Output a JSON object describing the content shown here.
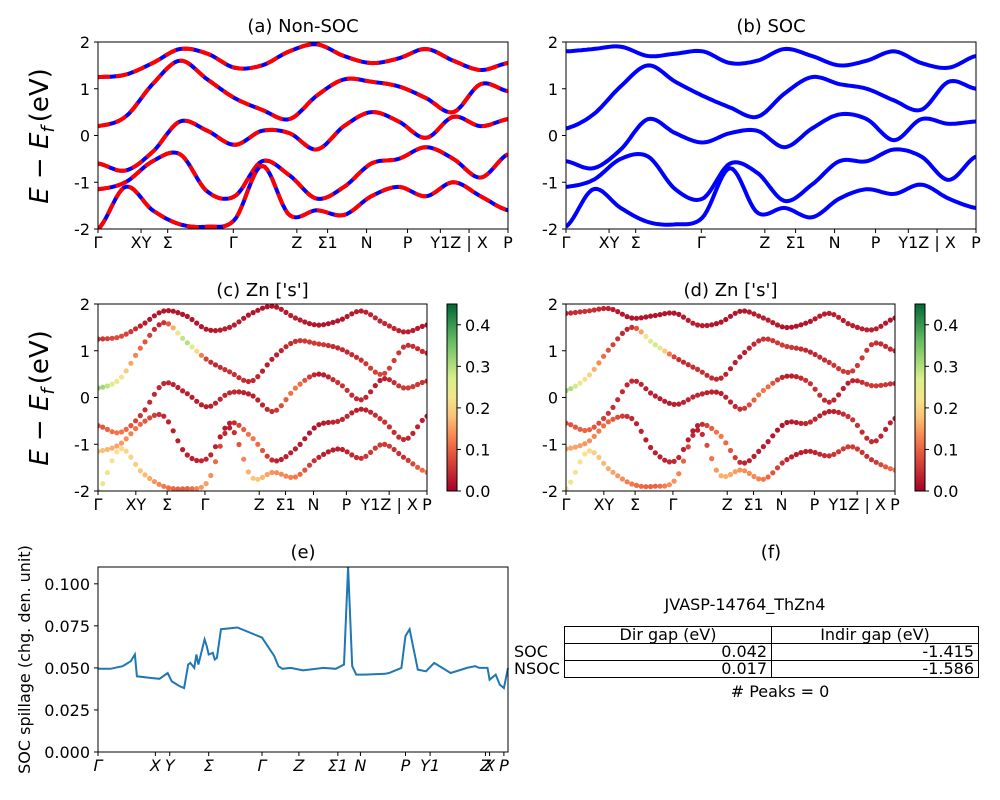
{
  "figure": {
    "panel_titles": [
      "(a) Non-SOC",
      "(b) SOC",
      "(c)  Zn ['s']",
      "(d) Zn ['s']",
      "(e)",
      "(f)"
    ],
    "band_ylabel": "E − E",
    "band_ylabel_sub": "f",
    "band_ylabel_unit": "(eV)",
    "spill_ylabel": "SOC spillage (chg. den. unit)"
  },
  "chart_data": [
    {
      "panel": "a",
      "type": "line",
      "title": "(a) Non-SOC",
      "ylim": [
        -2,
        2
      ],
      "yticks": [
        2,
        1,
        0,
        -1,
        -2
      ],
      "kpath_labels": [
        "Γ",
        "XY",
        "Σ",
        "Γ",
        "Z",
        "Σ1",
        "N",
        "P",
        "Y1",
        "Z | X",
        "P"
      ],
      "kpath_positions": [
        0,
        0.105,
        0.17,
        0.33,
        0.485,
        0.56,
        0.655,
        0.755,
        0.835,
        0.905,
        1.0
      ],
      "series": [
        {
          "values": [
            1.25,
            1.3,
            1.55,
            1.85,
            1.75,
            1.45,
            1.5,
            1.8,
            1.95,
            1.7,
            1.55,
            1.65,
            1.85,
            1.6,
            1.4,
            1.55
          ]
        },
        {
          "values": [
            0.2,
            0.4,
            1.1,
            1.6,
            1.2,
            0.8,
            0.55,
            0.35,
            0.85,
            1.2,
            1.15,
            1.05,
            0.8,
            0.5,
            1.1,
            0.95
          ]
        },
        {
          "values": [
            -0.6,
            -0.75,
            -0.35,
            0.3,
            0.1,
            -0.2,
            0.1,
            0.05,
            -0.3,
            0.2,
            0.5,
            0.3,
            -0.05,
            0.4,
            0.2,
            0.35
          ]
        },
        {
          "values": [
            -1.15,
            -1.0,
            -0.55,
            -0.4,
            -1.2,
            -1.3,
            -0.55,
            -0.85,
            -1.35,
            -1.1,
            -0.6,
            -0.5,
            -0.25,
            -0.5,
            -0.9,
            -0.4
          ]
        },
        {
          "values": [
            -2.0,
            -1.1,
            -1.6,
            -1.9,
            -1.95,
            -1.8,
            -0.65,
            -1.7,
            -1.6,
            -1.7,
            -1.3,
            -1.1,
            -1.3,
            -1.0,
            -1.3,
            -1.6
          ]
        }
      ]
    },
    {
      "panel": "b",
      "type": "line",
      "title": "(b) SOC",
      "ylim": [
        -2,
        2
      ],
      "yticks": [
        2,
        1,
        0,
        -1,
        -2
      ],
      "kpath_labels": [
        "Γ",
        "XY",
        "Σ",
        "Γ",
        "Z",
        "Σ1",
        "N",
        "P",
        "Y1",
        "Z | X",
        "P"
      ],
      "kpath_positions": [
        0,
        0.105,
        0.17,
        0.33,
        0.485,
        0.56,
        0.655,
        0.755,
        0.835,
        0.905,
        1.0
      ],
      "series": [
        {
          "values": [
            1.8,
            1.85,
            1.9,
            1.7,
            1.75,
            1.8,
            1.55,
            1.6,
            1.85,
            1.7,
            1.5,
            1.6,
            1.8,
            1.55,
            1.45,
            1.7
          ]
        },
        {
          "values": [
            0.15,
            0.45,
            1.05,
            1.5,
            1.15,
            0.85,
            0.6,
            0.4,
            0.9,
            1.25,
            1.1,
            1.0,
            0.75,
            0.55,
            1.15,
            1.0
          ]
        },
        {
          "values": [
            -0.55,
            -0.7,
            -0.3,
            0.35,
            0.05,
            -0.15,
            0.05,
            0.1,
            -0.25,
            0.15,
            0.45,
            0.35,
            -0.1,
            0.35,
            0.25,
            0.3
          ]
        },
        {
          "values": [
            -1.1,
            -0.95,
            -0.5,
            -0.45,
            -1.15,
            -1.35,
            -0.6,
            -0.8,
            -1.4,
            -1.05,
            -0.55,
            -0.55,
            -0.3,
            -0.45,
            -0.95,
            -0.45
          ]
        },
        {
          "values": [
            -1.95,
            -1.15,
            -1.55,
            -1.85,
            -1.9,
            -1.75,
            -0.7,
            -1.65,
            -1.55,
            -1.75,
            -1.35,
            -1.15,
            -1.25,
            -1.05,
            -1.35,
            -1.55
          ]
        }
      ]
    },
    {
      "panel": "c",
      "type": "scatter",
      "title": "(c)  Zn ['s']",
      "ylim": [
        -2,
        2
      ],
      "colorbar": {
        "min": 0.0,
        "max": 0.45,
        "ticks": [
          "0.0",
          "0.1",
          "0.2",
          "0.3",
          "0.4"
        ],
        "colormap": "RdYlGn"
      },
      "kpath_labels": [
        "Γ",
        "XY",
        "Σ",
        "Γ",
        "Z",
        "Σ1",
        "N",
        "P",
        "Y1Z | X",
        "P"
      ],
      "kpath_positions": [
        0,
        0.115,
        0.21,
        0.325,
        0.49,
        0.57,
        0.655,
        0.755,
        0.885,
        1.0
      ],
      "bands": [
        {
          "values": [
            1.25,
            1.3,
            1.55,
            1.85,
            1.75,
            1.45,
            1.5,
            1.8,
            1.95,
            1.7,
            1.55,
            1.65,
            1.85,
            1.6,
            1.4,
            1.55
          ],
          "weight": [
            0.05,
            0.08,
            0.03,
            0.02,
            0.02,
            0.02,
            0.03,
            0.02,
            0.02,
            0.03,
            0.02,
            0.02,
            0.03,
            0.04,
            0.03,
            0.02
          ]
        },
        {
          "values": [
            0.2,
            0.4,
            1.1,
            1.6,
            1.2,
            0.8,
            0.55,
            0.35,
            0.85,
            1.2,
            1.15,
            1.05,
            0.8,
            0.5,
            1.1,
            0.95
          ],
          "weight": [
            0.33,
            0.22,
            0.1,
            0.05,
            0.3,
            0.06,
            0.05,
            0.04,
            0.03,
            0.05,
            0.06,
            0.04,
            0.05,
            0.07,
            0.05,
            0.04
          ]
        },
        {
          "values": [
            -0.6,
            -0.75,
            -0.35,
            0.3,
            0.1,
            -0.2,
            0.1,
            0.05,
            -0.3,
            0.2,
            0.5,
            0.3,
            -0.05,
            0.4,
            0.2,
            0.35
          ],
          "weight": [
            0.08,
            0.12,
            0.05,
            0.04,
            0.03,
            0.03,
            0.04,
            0.03,
            0.05,
            0.12,
            0.03,
            0.05,
            0.04,
            0.03,
            0.06,
            0.05
          ]
        },
        {
          "values": [
            -1.15,
            -1.0,
            -0.55,
            -0.4,
            -1.2,
            -1.3,
            -0.55,
            -0.85,
            -1.35,
            -1.1,
            -0.6,
            -0.5,
            -0.25,
            -0.5,
            -0.9,
            -0.4
          ],
          "weight": [
            0.18,
            0.15,
            0.1,
            0.04,
            0.03,
            0.04,
            0.03,
            0.12,
            0.04,
            0.03,
            0.02,
            0.04,
            0.03,
            0.05,
            0.04,
            0.03
          ]
        },
        {
          "values": [
            -2.0,
            -1.1,
            -1.6,
            -1.9,
            -1.95,
            -1.8,
            -0.65,
            -1.7,
            -1.6,
            -1.7,
            -1.3,
            -1.1,
            -1.3,
            -1.0,
            -1.3,
            -1.6
          ],
          "weight": [
            0.25,
            0.2,
            0.18,
            0.12,
            0.1,
            0.15,
            0.03,
            0.18,
            0.14,
            0.12,
            0.04,
            0.03,
            0.05,
            0.06,
            0.05,
            0.12
          ]
        }
      ]
    },
    {
      "panel": "d",
      "type": "scatter",
      "title": "(d) Zn ['s']",
      "ylim": [
        -2,
        2
      ],
      "colorbar": {
        "min": 0.0,
        "max": 0.45,
        "ticks": [
          "0.0",
          "0.1",
          "0.2",
          "0.3",
          "0.4"
        ],
        "colormap": "RdYlGn"
      },
      "kpath_labels": [
        "Γ",
        "XY",
        "Σ",
        "Γ",
        "Z",
        "Σ1",
        "N",
        "P",
        "Y1Z | X",
        "P"
      ],
      "kpath_positions": [
        0,
        0.115,
        0.21,
        0.325,
        0.49,
        0.57,
        0.655,
        0.755,
        0.885,
        1.0
      ],
      "bands": [
        {
          "values": [
            1.8,
            1.85,
            1.9,
            1.7,
            1.75,
            1.8,
            1.55,
            1.6,
            1.85,
            1.7,
            1.5,
            1.6,
            1.8,
            1.55,
            1.45,
            1.7
          ],
          "weight": [
            0.04,
            0.05,
            0.03,
            0.02,
            0.02,
            0.02,
            0.03,
            0.02,
            0.02,
            0.03,
            0.02,
            0.02,
            0.03,
            0.03,
            0.03,
            0.02
          ]
        },
        {
          "values": [
            0.15,
            0.45,
            1.05,
            1.5,
            1.15,
            0.85,
            0.6,
            0.4,
            0.9,
            1.25,
            1.1,
            1.0,
            0.75,
            0.55,
            1.15,
            1.0
          ],
          "weight": [
            0.32,
            0.2,
            0.08,
            0.05,
            0.28,
            0.06,
            0.05,
            0.04,
            0.03,
            0.05,
            0.06,
            0.04,
            0.05,
            0.06,
            0.05,
            0.04
          ]
        },
        {
          "values": [
            -0.55,
            -0.7,
            -0.3,
            0.35,
            0.05,
            -0.15,
            0.05,
            0.1,
            -0.25,
            0.15,
            0.45,
            0.35,
            -0.1,
            0.35,
            0.25,
            0.3
          ],
          "weight": [
            0.08,
            0.1,
            0.05,
            0.04,
            0.03,
            0.03,
            0.04,
            0.03,
            0.05,
            0.12,
            0.03,
            0.05,
            0.04,
            0.03,
            0.06,
            0.05
          ]
        },
        {
          "values": [
            -1.1,
            -0.95,
            -0.5,
            -0.45,
            -1.15,
            -1.35,
            -0.6,
            -0.8,
            -1.4,
            -1.05,
            -0.55,
            -0.55,
            -0.3,
            -0.45,
            -0.95,
            -0.45
          ],
          "weight": [
            0.16,
            0.14,
            0.1,
            0.04,
            0.03,
            0.04,
            0.03,
            0.12,
            0.04,
            0.03,
            0.02,
            0.04,
            0.03,
            0.05,
            0.04,
            0.03
          ]
        },
        {
          "values": [
            -1.95,
            -1.15,
            -1.55,
            -1.85,
            -1.9,
            -1.75,
            -0.7,
            -1.65,
            -1.55,
            -1.75,
            -1.35,
            -1.15,
            -1.25,
            -1.05,
            -1.35,
            -1.55
          ],
          "weight": [
            0.24,
            0.2,
            0.16,
            0.12,
            0.1,
            0.14,
            0.03,
            0.16,
            0.14,
            0.12,
            0.04,
            0.03,
            0.05,
            0.06,
            0.05,
            0.12
          ]
        }
      ]
    },
    {
      "panel": "e",
      "type": "line",
      "title": "(e)",
      "ylabel": "SOC spillage (chg. den. unit)",
      "ylim": [
        0.0,
        0.11
      ],
      "yticks": [
        "0.000",
        "0.025",
        "0.050",
        "0.075",
        "0.100"
      ],
      "kpath_labels": [
        "Γ",
        "X",
        "Y",
        "Σ",
        "Γ",
        "Z",
        "Σ1",
        "N",
        "P",
        "Y1",
        "Z",
        "X",
        "P"
      ],
      "kpath_positions": [
        0,
        0.14,
        0.175,
        0.27,
        0.4,
        0.49,
        0.585,
        0.64,
        0.75,
        0.81,
        0.945,
        0.955,
        0.99
      ],
      "x": [
        0,
        0.03,
        0.06,
        0.08,
        0.09,
        0.095,
        0.13,
        0.15,
        0.17,
        0.18,
        0.2,
        0.21,
        0.22,
        0.225,
        0.235,
        0.24,
        0.245,
        0.26,
        0.265,
        0.27,
        0.28,
        0.285,
        0.29,
        0.3,
        0.34,
        0.4,
        0.43,
        0.44,
        0.45,
        0.47,
        0.5,
        0.55,
        0.58,
        0.6,
        0.61,
        0.62,
        0.63,
        0.65,
        0.7,
        0.71,
        0.72,
        0.74,
        0.75,
        0.76,
        0.78,
        0.8,
        0.82,
        0.86,
        0.9,
        0.92,
        0.93,
        0.94,
        0.95,
        0.955,
        0.97,
        0.98,
        0.99,
        1.0
      ],
      "values": [
        0.0495,
        0.0495,
        0.051,
        0.054,
        0.058,
        0.045,
        0.044,
        0.0435,
        0.047,
        0.042,
        0.039,
        0.038,
        0.052,
        0.053,
        0.05,
        0.058,
        0.052,
        0.067,
        0.063,
        0.058,
        0.059,
        0.055,
        0.056,
        0.073,
        0.074,
        0.068,
        0.057,
        0.051,
        0.0495,
        0.05,
        0.0485,
        0.05,
        0.0495,
        0.052,
        0.11,
        0.051,
        0.046,
        0.046,
        0.0465,
        0.047,
        0.048,
        0.05,
        0.069,
        0.073,
        0.049,
        0.048,
        0.053,
        0.047,
        0.05,
        0.051,
        0.05,
        0.05,
        0.05,
        0.043,
        0.046,
        0.04,
        0.038,
        0.05
      ]
    },
    {
      "panel": "f",
      "type": "table",
      "title": "(f)",
      "caption": "JVASP-14764_ThZn4",
      "columns": [
        "Dir gap (eV)",
        "Indir gap (eV)"
      ],
      "rows": [
        {
          "label": "SOC",
          "values": [
            "0.042",
            "-1.415"
          ]
        },
        {
          "label": "NSOC",
          "values": [
            "0.017",
            "-1.586"
          ]
        }
      ],
      "footer": "# Peaks = 0"
    }
  ]
}
